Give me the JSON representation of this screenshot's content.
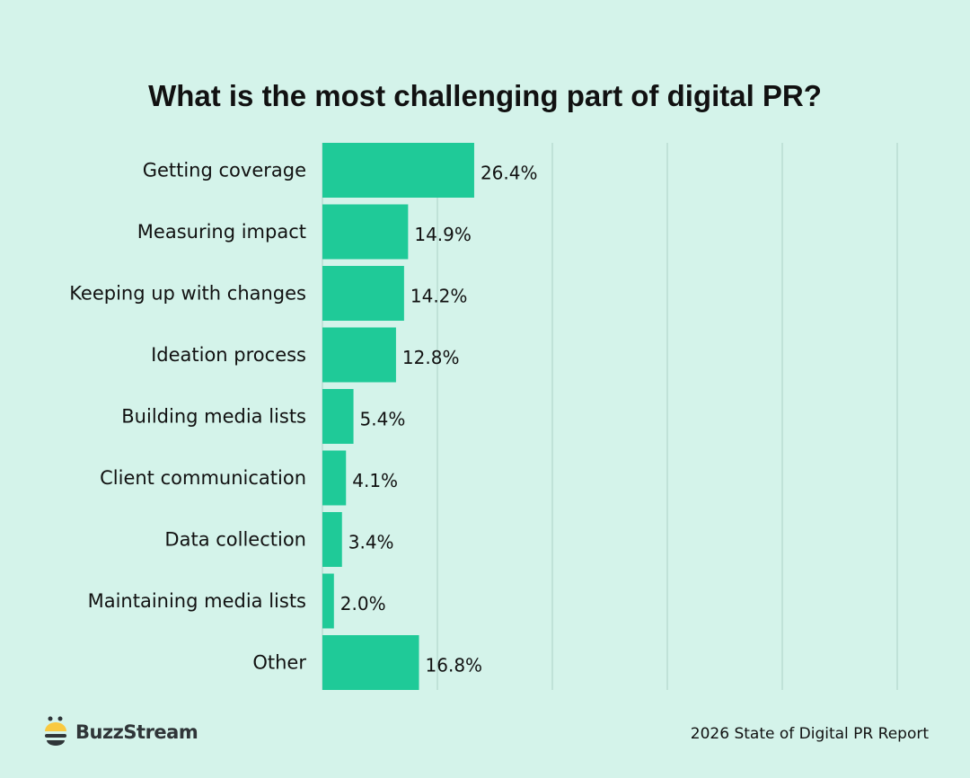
{
  "chart_data": {
    "type": "bar",
    "orientation": "horizontal",
    "title": "What is the most challenging part of digital PR?",
    "categories": [
      "Getting coverage",
      "Measuring impact",
      "Keeping up with changes",
      "Ideation process",
      "Building media lists",
      "Client communication",
      "Data collection",
      "Maintaining media lists",
      "Other"
    ],
    "values": [
      26.4,
      14.9,
      14.2,
      12.8,
      5.4,
      4.1,
      3.4,
      2.0,
      16.8
    ],
    "data_labels": [
      "26.4%",
      "14.9%",
      "14.2%",
      "12.8%",
      "5.4%",
      "4.1%",
      "3.4%",
      "2.0%",
      "16.8%"
    ],
    "xlim": [
      0,
      100
    ],
    "grid": true,
    "gridlines": [
      20,
      40,
      60,
      80,
      100
    ],
    "bar_color": "#1fca98",
    "grid_color": "#b3d6cc"
  },
  "footer": {
    "brand": "BuzzStream",
    "source": "2026 State of Digital PR Report"
  },
  "colors": {
    "background": "#d4f3ea",
    "logo_yellow": "#f9c940",
    "logo_dark": "#2f3538"
  }
}
